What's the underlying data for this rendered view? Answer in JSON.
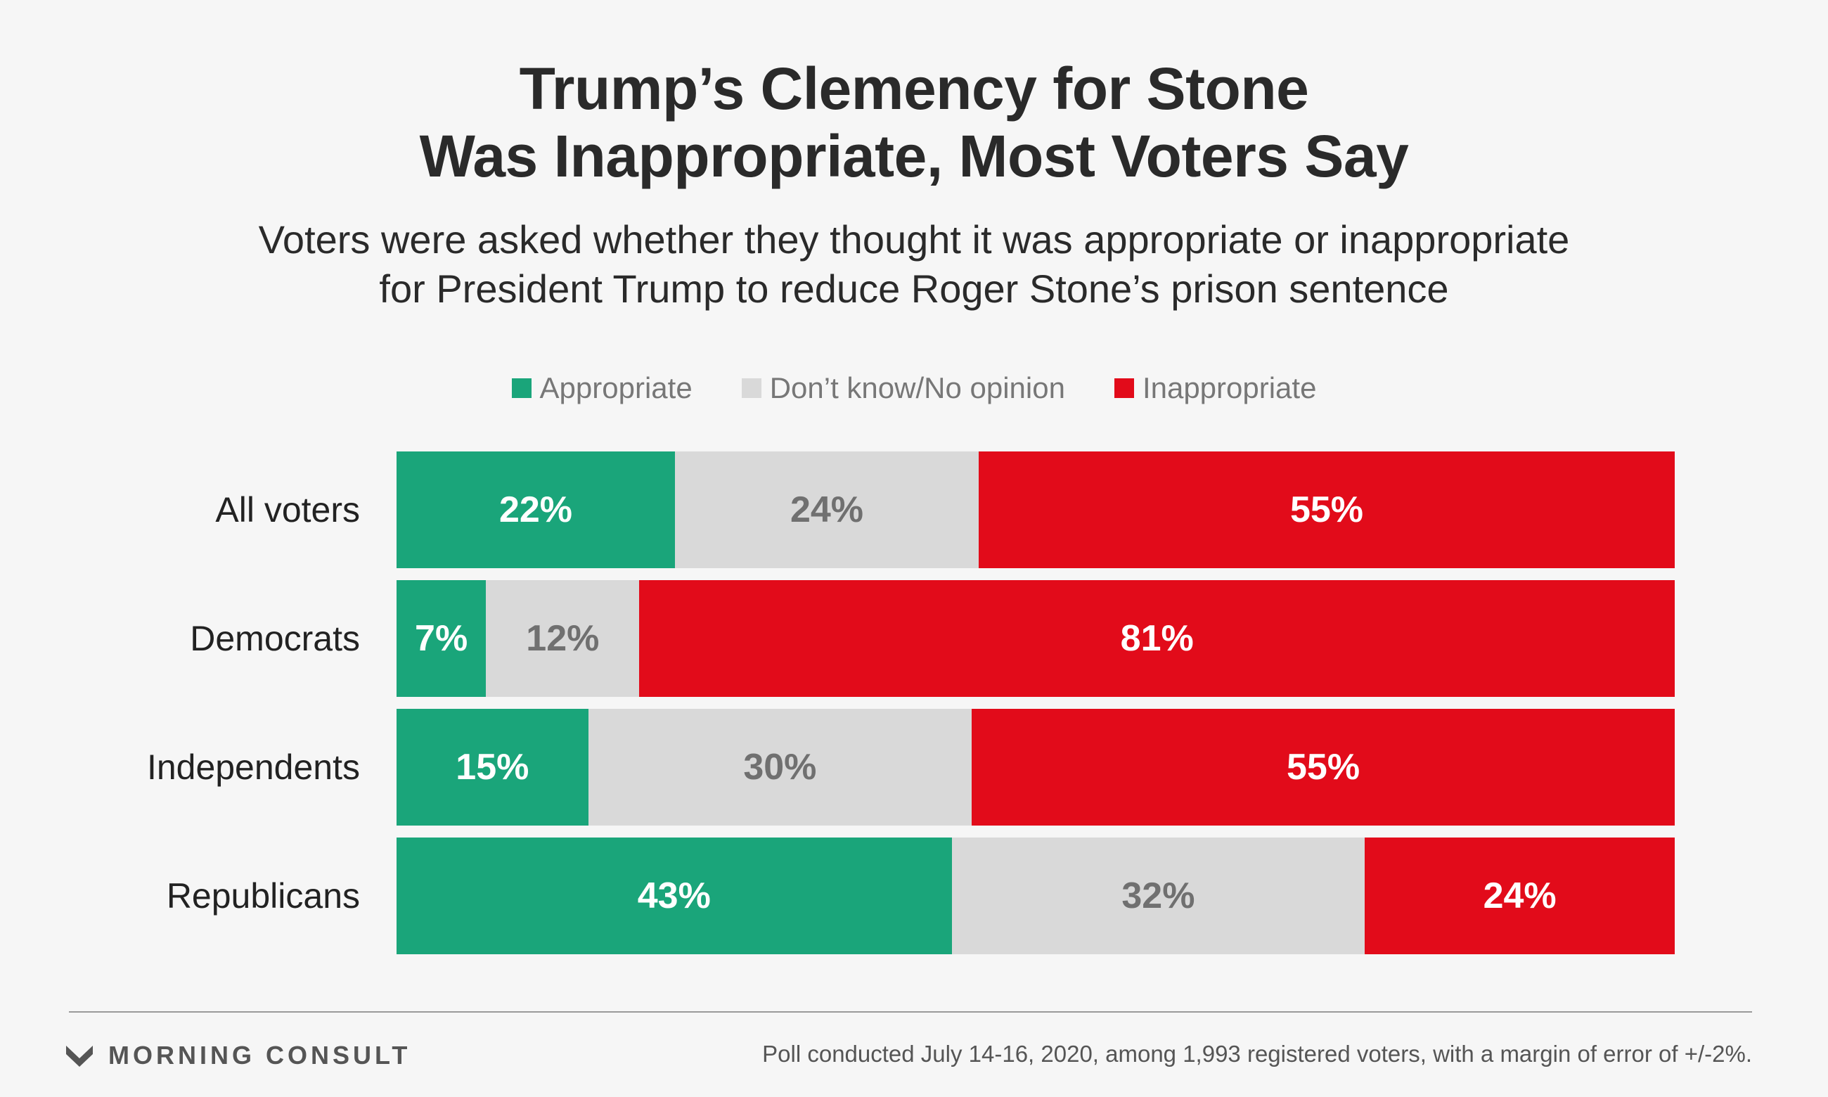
{
  "title_line1": "Trump’s Clemency for Stone",
  "title_line2": "Was Inappropriate, Most Voters Say",
  "subtitle_line1": "Voters were asked whether they thought it was appropriate or inappropriate",
  "subtitle_line2": "for President Trump to reduce Roger Stone’s prison sentence",
  "colors": {
    "appropriate": "#1aa57a",
    "dont_know": "#d9d9d9",
    "inappropriate": "#e20b1a",
    "dont_know_text": "#707070",
    "white_text": "#ffffff"
  },
  "footer": {
    "logo_text": "MORNING CONSULT",
    "source": "Poll conducted July 14-16, 2020, among 1,993 registered voters, with a margin of error of +/-2%."
  },
  "chart_data": {
    "type": "bar",
    "orientation": "horizontal",
    "stacked": true,
    "title": "Trump’s Clemency for Stone Was Inappropriate, Most Voters Say",
    "xlabel": "",
    "ylabel": "",
    "legend_position": "top-center",
    "grid": false,
    "categories": [
      "All voters",
      "Democrats",
      "Independents",
      "Republicans"
    ],
    "series": [
      {
        "name": "Appropriate",
        "values": [
          22,
          7,
          15,
          43
        ],
        "labels": [
          "22%",
          "7%",
          "15%",
          "43%"
        ]
      },
      {
        "name": "Don’t know/No opinion",
        "values": [
          24,
          12,
          30,
          32
        ],
        "labels": [
          "24%",
          "12%",
          "30%",
          "32%"
        ]
      },
      {
        "name": "Inappropriate",
        "values": [
          55,
          81,
          55,
          24
        ],
        "labels": [
          "55%",
          "81%",
          "55%",
          "24%"
        ]
      }
    ]
  }
}
